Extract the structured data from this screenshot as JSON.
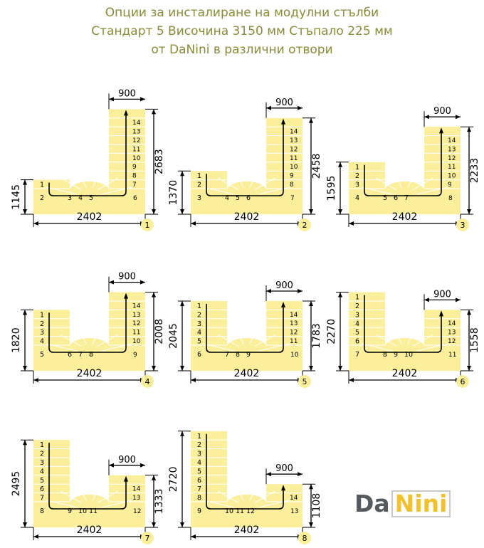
{
  "header": {
    "line1": "Опции за инсталиране на модулни стълби",
    "line2": "Стандарт 5 Височина 3150 мм Стъпало 225 мм",
    "line3": "от DaNini в различни отвори"
  },
  "logo": {
    "part1": "Da",
    "part2": "Nini"
  },
  "colors": {
    "stair": "#fbef9c",
    "title": "#8a8a3a",
    "line": "#000000",
    "logo_da": "#555a5e",
    "logo_nini": "#f2c12e"
  },
  "options": [
    {
      "number": "1",
      "width": "2402",
      "opening": "900",
      "left_height": "1145",
      "right_height": "2683",
      "left_steps": [
        "1",
        "2"
      ],
      "winder_steps": [
        "3",
        "4",
        "5"
      ],
      "right_steps": [
        "6",
        "7",
        "8",
        "9",
        "10",
        "11",
        "12",
        "13",
        "14"
      ]
    },
    {
      "number": "2",
      "width": "2402",
      "opening": "900",
      "left_height": "1370",
      "right_height": "2458",
      "left_steps": [
        "1",
        "2",
        "3"
      ],
      "winder_steps": [
        "4",
        "5",
        "6"
      ],
      "right_steps": [
        "7",
        "8",
        "9",
        "10",
        "11",
        "12",
        "13",
        "14"
      ]
    },
    {
      "number": "3",
      "width": "2402",
      "opening": "900",
      "left_height": "1595",
      "right_height": "2233",
      "left_steps": [
        "1",
        "2",
        "3",
        "4"
      ],
      "winder_steps": [
        "5",
        "6",
        "7"
      ],
      "right_steps": [
        "8",
        "9",
        "10",
        "11",
        "12",
        "13",
        "14"
      ]
    },
    {
      "number": "4",
      "width": "2402",
      "opening": "900",
      "left_height": "1820",
      "right_height": "2008",
      "left_steps": [
        "1",
        "2",
        "3",
        "4",
        "5"
      ],
      "winder_steps": [
        "6",
        "7",
        "8"
      ],
      "right_steps": [
        "9",
        "10",
        "11",
        "12",
        "13",
        "14"
      ]
    },
    {
      "number": "5",
      "width": "2402",
      "opening": "900",
      "left_height": "2045",
      "right_height": "1783",
      "left_steps": [
        "1",
        "2",
        "3",
        "4",
        "5",
        "6"
      ],
      "winder_steps": [
        "7",
        "8",
        "9"
      ],
      "right_steps": [
        "10",
        "11",
        "12",
        "13",
        "14"
      ]
    },
    {
      "number": "6",
      "width": "2402",
      "opening": "900",
      "left_height": "2270",
      "right_height": "1558",
      "left_steps": [
        "1",
        "2",
        "3",
        "4",
        "5",
        "6",
        "7"
      ],
      "winder_steps": [
        "8",
        "9",
        "10"
      ],
      "right_steps": [
        "11",
        "12",
        "13",
        "14"
      ]
    },
    {
      "number": "7",
      "width": "2402",
      "opening": "900",
      "left_height": "2495",
      "right_height": "1333",
      "left_steps": [
        "1",
        "2",
        "3",
        "4",
        "5",
        "6",
        "7",
        "8"
      ],
      "winder_steps": [
        "9",
        "10",
        "11"
      ],
      "right_steps": [
        "12",
        "13",
        "14"
      ]
    },
    {
      "number": "8",
      "width": "2402",
      "opening": "900",
      "left_height": "2720",
      "right_height": "1108",
      "left_steps": [
        "1",
        "2",
        "3",
        "4",
        "5",
        "6",
        "7",
        "8",
        "9"
      ],
      "winder_steps": [
        "10",
        "11",
        "12"
      ],
      "right_steps": [
        "13",
        "14"
      ]
    }
  ]
}
